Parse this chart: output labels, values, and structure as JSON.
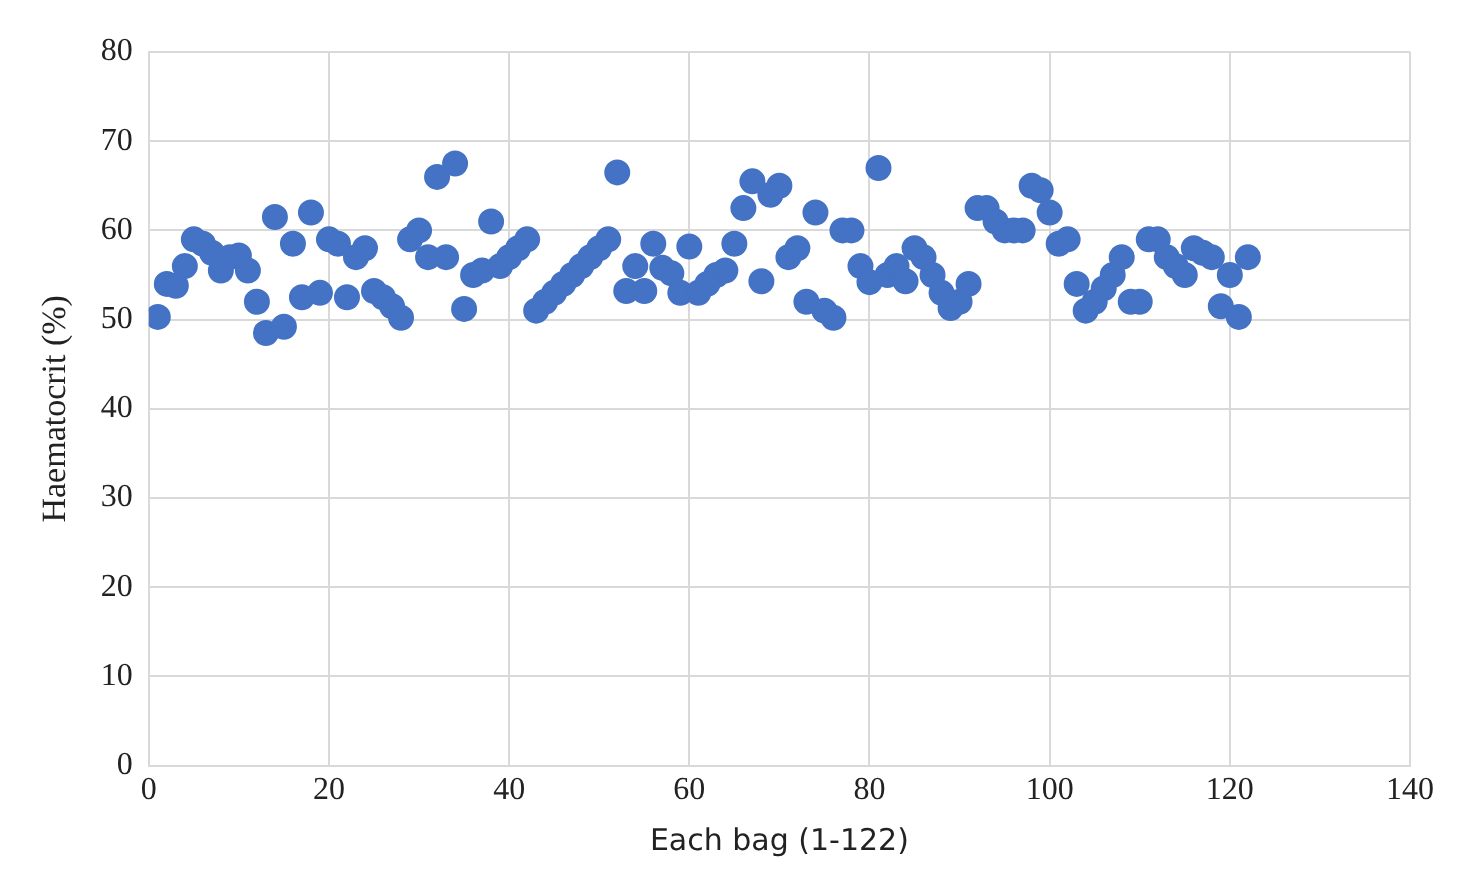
{
  "chart_data": {
    "type": "scatter",
    "xlabel": "Each bag (1-122)",
    "ylabel": "Haematocrit (%)",
    "xlim": [
      0,
      140
    ],
    "xticks": [
      0,
      20,
      40,
      60,
      80,
      100,
      120,
      140
    ],
    "ylim": [
      0,
      80
    ],
    "yticks": [
      0,
      10,
      20,
      30,
      40,
      50,
      60,
      70,
      80
    ],
    "grid": true,
    "legend": false,
    "marker": "circle",
    "series": [
      {
        "color": "#4472c4",
        "x": [
          1,
          2,
          3,
          4,
          5,
          6,
          7,
          8,
          9,
          10,
          11,
          12,
          13,
          14,
          15,
          16,
          17,
          18,
          19,
          20,
          21,
          22,
          23,
          24,
          25,
          26,
          27,
          28,
          29,
          30,
          31,
          32,
          33,
          34,
          35,
          36,
          37,
          38,
          39,
          40,
          41,
          42,
          43,
          44,
          45,
          46,
          47,
          48,
          49,
          50,
          51,
          52,
          53,
          54,
          55,
          56,
          57,
          58,
          59,
          60,
          61,
          62,
          63,
          64,
          65,
          66,
          67,
          68,
          69,
          70,
          71,
          72,
          73,
          74,
          75,
          76,
          77,
          78,
          79,
          80,
          81,
          82,
          83,
          84,
          85,
          86,
          87,
          88,
          89,
          90,
          91,
          92,
          93,
          94,
          95,
          96,
          97,
          98,
          99,
          100,
          101,
          102,
          103,
          104,
          105,
          106,
          107,
          108,
          109,
          110,
          111,
          112,
          113,
          114,
          115,
          116,
          117,
          118,
          119,
          120,
          121,
          122
        ],
        "values": [
          50.3,
          54,
          53.8,
          56,
          59,
          58.5,
          57.5,
          55.5,
          57,
          57.2,
          55.5,
          52,
          48.5,
          61.5,
          49.2,
          58.5,
          52.5,
          62,
          53,
          59,
          58.5,
          52.5,
          57,
          58,
          53.2,
          52.5,
          51.5,
          50.2,
          59,
          60,
          57,
          66,
          57,
          67.5,
          51.2,
          55,
          55.5,
          61,
          56,
          57,
          58,
          59,
          51,
          52,
          53,
          54,
          55,
          56,
          57,
          58,
          59,
          66.5,
          53.2,
          56,
          53.2,
          58.5,
          55.8,
          55.2,
          53,
          58.2,
          53,
          54,
          55,
          55.5,
          58.5,
          62.5,
          65.5,
          54.3,
          64,
          65,
          57,
          58,
          52,
          62,
          51,
          50.2,
          60,
          60,
          56,
          54.2,
          67,
          55,
          56,
          54.3,
          58,
          57,
          55,
          53,
          51.3,
          52,
          54,
          62.5,
          62.5,
          61,
          60,
          60,
          60,
          65,
          64.5,
          62,
          58.5,
          59,
          54,
          51,
          52,
          53.5,
          55,
          57,
          52,
          52,
          59,
          59,
          57,
          56,
          55,
          58,
          57.5,
          57,
          51.5,
          55,
          50.3,
          57
        ]
      }
    ]
  }
}
